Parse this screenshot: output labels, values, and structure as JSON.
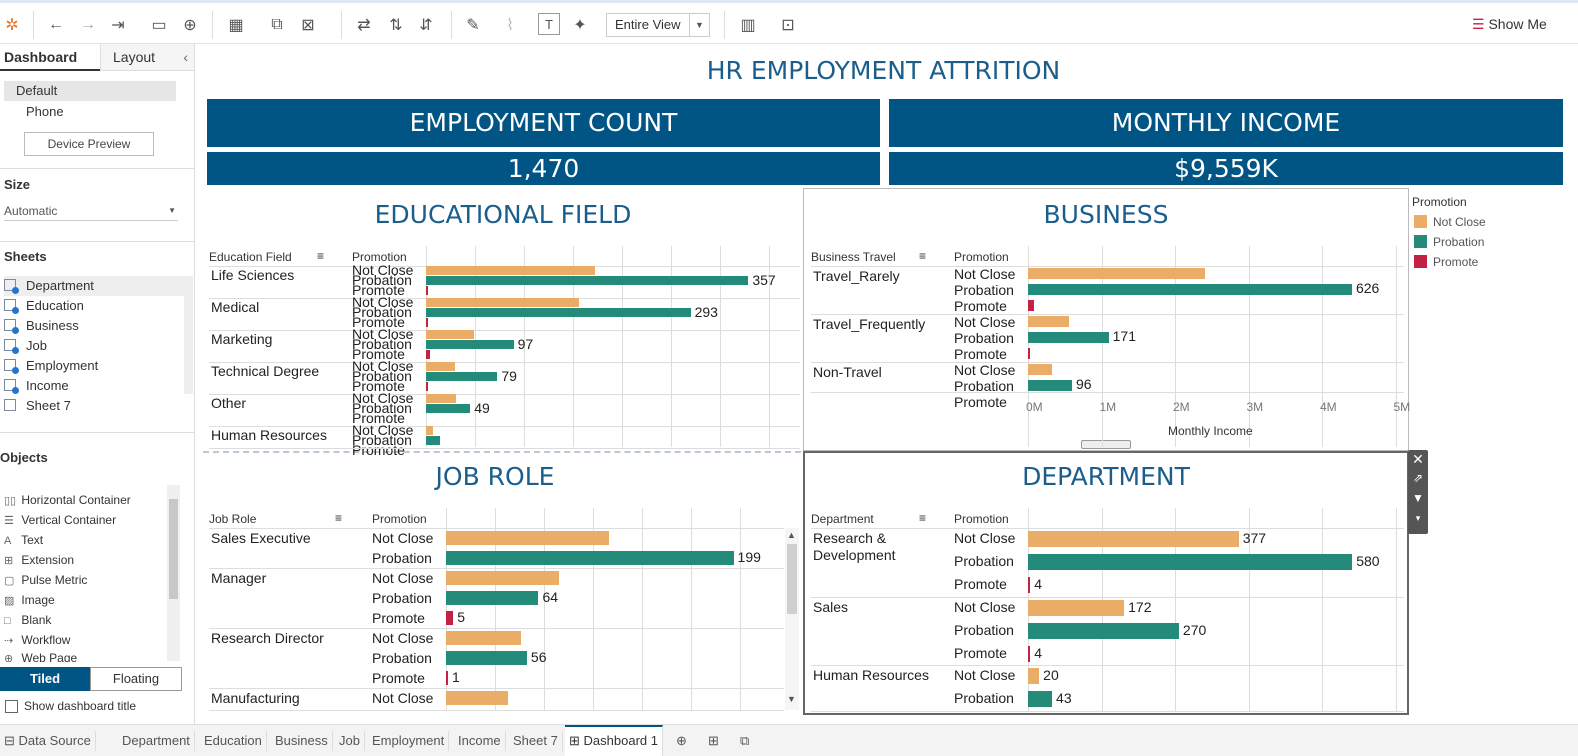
{
  "toolbar": {
    "fit_value": "Entire View",
    "show_me_label": "Show Me",
    "icons": [
      "tableau-logo-icon",
      "undo-icon",
      "redo-icon",
      "replay-icon",
      "save-icon",
      "add-datasource-icon",
      "new-worksheet-icon",
      "duplicate-icon",
      "clear-icon",
      "swap-icon",
      "sort-asc-icon",
      "sort-desc-icon",
      "highlight-icon",
      "annotate-icon",
      "text-icon",
      "pin-icon",
      "show-cards-icon",
      "presentation-icon"
    ]
  },
  "left_panel": {
    "tabs": [
      "Dashboard",
      "Layout"
    ],
    "device_options": [
      "Default",
      "Phone"
    ],
    "device_preview_label": "Device Preview",
    "size_heading": "Size",
    "size_value": "Automatic",
    "sheets_heading": "Sheets",
    "sheets": [
      "Department",
      "Education",
      "Business",
      "Job",
      "Employment",
      "Income",
      "Sheet 7"
    ],
    "objects_heading": "Objects",
    "objects": [
      "Horizontal Container",
      "Vertical Container",
      "Text",
      "Extension",
      "Pulse Metric",
      "Image",
      "Blank",
      "Workflow",
      "Web Page"
    ],
    "tiled_label": "Tiled",
    "floating_label": "Floating",
    "show_title_label": "Show dashboard title"
  },
  "dashboard": {
    "title": "HR EMPLOYMENT ATTRITION",
    "kpis": [
      {
        "label": "EMPLOYMENT COUNT",
        "value": "1,470"
      },
      {
        "label": "MONTHLY INCOME",
        "value": "$9,559K"
      }
    ],
    "legend": {
      "title": "Promotion",
      "items": [
        {
          "name": "Not Close",
          "color": "#e9ad67"
        },
        {
          "name": "Probation",
          "color": "#248a7a"
        },
        {
          "name": "Promote",
          "color": "#c42243"
        }
      ]
    }
  },
  "chart_data": [
    {
      "type": "bar",
      "title": "EDUCATIONAL FIELD",
      "row_header": "Education Field",
      "sub_header": "Promotion",
      "categories": [
        "Life Sciences",
        "Medical",
        "Marketing",
        "Technical Degree",
        "Other",
        "Human Resources"
      ],
      "series": [
        {
          "name": "Not Close",
          "values": [
            187,
            169,
            53,
            32,
            33,
            8
          ]
        },
        {
          "name": "Probation",
          "values": [
            357,
            293,
            97,
            79,
            49,
            16
          ]
        },
        {
          "name": "Promote",
          "values": [
            2,
            2,
            4,
            1,
            0,
            0
          ]
        }
      ],
      "labels": [
        "357",
        "293",
        "97",
        "79",
        "49"
      ]
    },
    {
      "type": "bar",
      "title": "BUSINESS",
      "row_header": "Business Travel",
      "sub_header": "Promotion",
      "xlabel": "Monthly Income",
      "x_ticks": [
        "0M",
        "1M",
        "2M",
        "3M",
        "4M",
        "5M"
      ],
      "xlim": [
        0,
        5000000
      ],
      "categories": [
        "Travel_Rarely",
        "Travel_Frequently",
        "Non-Travel"
      ],
      "series": [
        {
          "name": "Not Close",
          "values": [
            2420000,
            560000,
            330000
          ]
        },
        {
          "name": "Probation",
          "values": [
            4420000,
            1100000,
            600000
          ]
        },
        {
          "name": "Promote",
          "values": [
            80000,
            10000,
            0
          ]
        }
      ],
      "labels": [
        "626",
        "171",
        "96"
      ]
    },
    {
      "type": "bar",
      "title": "JOB ROLE",
      "row_header": "Job Role",
      "sub_header": "Promotion",
      "categories": [
        "Sales Executive",
        "Manager",
        "Research Director",
        "Manufacturing"
      ],
      "series": [
        {
          "name": "Not Close",
          "values": [
            113,
            78,
            52,
            43
          ]
        },
        {
          "name": "Probation",
          "values": [
            199,
            64,
            56,
            null
          ]
        },
        {
          "name": "Promote",
          "values": [
            null,
            5,
            1,
            null
          ]
        }
      ],
      "value_labels": [
        [
          "",
          "199",
          ""
        ],
        [
          "",
          "64",
          "5"
        ],
        [
          "",
          "56",
          "1"
        ],
        [
          ""
        ]
      ]
    },
    {
      "type": "bar",
      "title": "DEPARTMENT",
      "row_header": "Department",
      "sub_header": "Promotion",
      "categories": [
        "Research & Development",
        "Sales",
        "Human Resources"
      ],
      "series": [
        {
          "name": "Not Close",
          "values": [
            377,
            172,
            20
          ]
        },
        {
          "name": "Probation",
          "values": [
            580,
            270,
            43
          ]
        },
        {
          "name": "Promote",
          "values": [
            4,
            4,
            null
          ]
        }
      ]
    }
  ],
  "bottom_tabs": [
    "Data Source",
    "Department",
    "Education",
    "Business",
    "Job",
    "Employment",
    "Income",
    "Sheet 7",
    "Dashboard 1"
  ]
}
